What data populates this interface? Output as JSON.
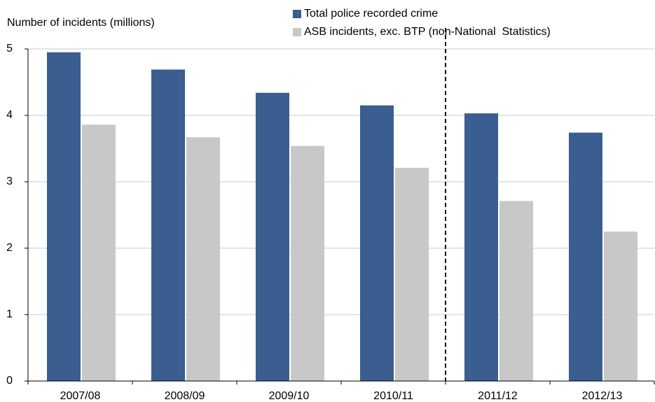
{
  "chart_data": {
    "type": "bar",
    "y_axis_label": "Number of incidents (millions)",
    "categories": [
      "2007/08",
      "2008/09",
      "2009/10",
      "2010/11",
      "2011/12",
      "2012/13"
    ],
    "series": [
      {
        "name": "Total police recorded crime",
        "color": "#3a5e8f",
        "values": [
          4.95,
          4.69,
          4.34,
          4.15,
          4.03,
          3.74
        ]
      },
      {
        "name": "ASB incidents, exc. BTP (non-National  Statistics)",
        "color": "#c8c8c8",
        "values": [
          3.86,
          3.67,
          3.54,
          3.21,
          2.71,
          2.25
        ]
      }
    ],
    "ylim": [
      0,
      5
    ],
    "yticks": [
      0,
      1,
      2,
      3,
      4,
      5
    ],
    "grid": true
  }
}
